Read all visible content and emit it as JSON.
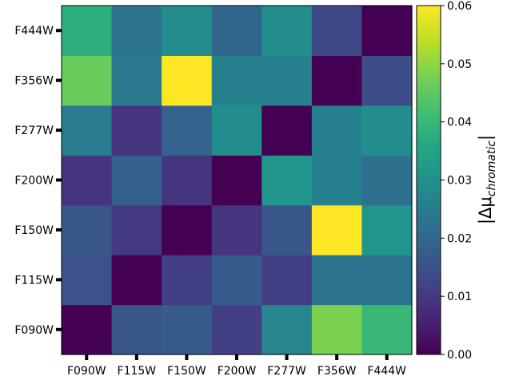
{
  "chart_data": {
    "type": "heatmap",
    "x_categories": [
      "F090W",
      "F115W",
      "F150W",
      "F200W",
      "F277W",
      "F356W",
      "F444W"
    ],
    "y_categories": [
      "F090W",
      "F115W",
      "F150W",
      "F200W",
      "F277W",
      "F356W",
      "F444W"
    ],
    "values": [
      [
        0.0,
        0.016,
        0.017,
        0.011,
        0.027,
        0.048,
        0.04
      ],
      [
        0.015,
        0.0,
        0.011,
        0.017,
        0.011,
        0.023,
        0.023
      ],
      [
        0.016,
        0.01,
        0.0,
        0.009,
        0.016,
        0.06,
        0.031
      ],
      [
        0.009,
        0.018,
        0.009,
        0.0,
        0.031,
        0.026,
        0.022
      ],
      [
        0.025,
        0.009,
        0.019,
        0.029,
        0.0,
        0.026,
        0.029
      ],
      [
        0.046,
        0.024,
        0.06,
        0.026,
        0.026,
        0.0,
        0.014
      ],
      [
        0.038,
        0.023,
        0.029,
        0.02,
        0.029,
        0.013,
        0.0
      ]
    ],
    "colorbar": {
      "label": "|Δμ_chromatic|",
      "label_main": "|Δμ",
      "label_sub": "chromatic",
      "label_end": "|",
      "vmin": 0.0,
      "vmax": 0.06,
      "ticks": [
        "0.00",
        "0.01",
        "0.02",
        "0.03",
        "0.04",
        "0.05",
        "0.06"
      ],
      "colormap": "viridis"
    },
    "grid": false
  }
}
